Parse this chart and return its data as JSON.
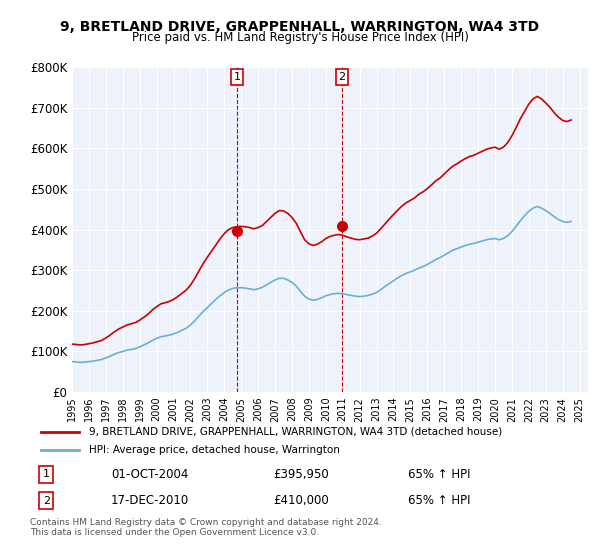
{
  "title": "9, BRETLAND DRIVE, GRAPPENHALL, WARRINGTON, WA4 3TD",
  "subtitle": "Price paid vs. HM Land Registry's House Price Index (HPI)",
  "ylabel": "",
  "background_color": "#ffffff",
  "plot_bg_color": "#eef3fb",
  "grid_color": "#ffffff",
  "ylim": [
    0,
    800000
  ],
  "yticks": [
    0,
    100000,
    200000,
    300000,
    400000,
    500000,
    600000,
    700000,
    800000
  ],
  "ytick_labels": [
    "£0",
    "£100K",
    "£200K",
    "£300K",
    "£400K",
    "£500K",
    "£600K",
    "£700K",
    "£800K"
  ],
  "xlim_start": 1995.0,
  "xlim_end": 2025.5,
  "hpi_color": "#6baed6",
  "property_color": "#cc0000",
  "marker1_date": 2004.75,
  "marker1_price": 395950,
  "marker1_label": "1",
  "marker1_date_str": "01-OCT-2004",
  "marker1_price_str": "£395,950",
  "marker1_hpi_str": "65% ↑ HPI",
  "marker2_date": 2010.96,
  "marker2_price": 410000,
  "marker2_label": "2",
  "marker2_date_str": "17-DEC-2010",
  "marker2_price_str": "£410,000",
  "marker2_hpi_str": "65% ↑ HPI",
  "legend_label_property": "9, BRETLAND DRIVE, GRAPPENHALL, WARRINGTON, WA4 3TD (detached house)",
  "legend_label_hpi": "HPI: Average price, detached house, Warrington",
  "footnote": "Contains HM Land Registry data © Crown copyright and database right 2024.\nThis data is licensed under the Open Government Licence v3.0.",
  "hpi_data_x": [
    1995.0,
    1995.25,
    1995.5,
    1995.75,
    1996.0,
    1996.25,
    1996.5,
    1996.75,
    1997.0,
    1997.25,
    1997.5,
    1997.75,
    1998.0,
    1998.25,
    1998.5,
    1998.75,
    1999.0,
    1999.25,
    1999.5,
    1999.75,
    2000.0,
    2000.25,
    2000.5,
    2000.75,
    2001.0,
    2001.25,
    2001.5,
    2001.75,
    2002.0,
    2002.25,
    2002.5,
    2002.75,
    2003.0,
    2003.25,
    2003.5,
    2003.75,
    2004.0,
    2004.25,
    2004.5,
    2004.75,
    2005.0,
    2005.25,
    2005.5,
    2005.75,
    2006.0,
    2006.25,
    2006.5,
    2006.75,
    2007.0,
    2007.25,
    2007.5,
    2007.75,
    2008.0,
    2008.25,
    2008.5,
    2008.75,
    2009.0,
    2009.25,
    2009.5,
    2009.75,
    2010.0,
    2010.25,
    2010.5,
    2010.75,
    2011.0,
    2011.25,
    2011.5,
    2011.75,
    2012.0,
    2012.25,
    2012.5,
    2012.75,
    2013.0,
    2013.25,
    2013.5,
    2013.75,
    2014.0,
    2014.25,
    2014.5,
    2014.75,
    2015.0,
    2015.25,
    2015.5,
    2015.75,
    2016.0,
    2016.25,
    2016.5,
    2016.75,
    2017.0,
    2017.25,
    2017.5,
    2017.75,
    2018.0,
    2018.25,
    2018.5,
    2018.75,
    2019.0,
    2019.25,
    2019.5,
    2019.75,
    2020.0,
    2020.25,
    2020.5,
    2020.75,
    2021.0,
    2021.25,
    2021.5,
    2021.75,
    2022.0,
    2022.25,
    2022.5,
    2022.75,
    2023.0,
    2023.25,
    2023.5,
    2023.75,
    2024.0,
    2024.25,
    2024.5
  ],
  "hpi_data_y": [
    75000,
    74000,
    73000,
    73500,
    75000,
    76000,
    78000,
    80000,
    84000,
    88000,
    93000,
    97000,
    100000,
    103000,
    105000,
    107000,
    111000,
    116000,
    121000,
    127000,
    132000,
    136000,
    138000,
    140000,
    143000,
    147000,
    152000,
    157000,
    165000,
    175000,
    187000,
    198000,
    208000,
    218000,
    228000,
    237000,
    245000,
    251000,
    255000,
    257000,
    257000,
    256000,
    254000,
    252000,
    254000,
    258000,
    264000,
    270000,
    276000,
    280000,
    280000,
    276000,
    270000,
    261000,
    248000,
    236000,
    229000,
    226000,
    228000,
    232000,
    237000,
    240000,
    242000,
    243000,
    242000,
    240000,
    238000,
    236000,
    235000,
    236000,
    238000,
    241000,
    245000,
    252000,
    260000,
    267000,
    274000,
    281000,
    287000,
    292000,
    296000,
    300000,
    305000,
    309000,
    314000,
    320000,
    326000,
    331000,
    337000,
    343000,
    349000,
    353000,
    357000,
    361000,
    364000,
    366000,
    369000,
    372000,
    375000,
    377000,
    378000,
    375000,
    378000,
    385000,
    395000,
    408000,
    422000,
    434000,
    445000,
    453000,
    457000,
    453000,
    447000,
    440000,
    432000,
    425000,
    420000,
    418000,
    420000
  ],
  "property_data_x": [
    1995.0,
    1995.25,
    1995.5,
    1995.75,
    1996.0,
    1996.25,
    1996.5,
    1996.75,
    1997.0,
    1997.25,
    1997.5,
    1997.75,
    1998.0,
    1998.25,
    1998.5,
    1998.75,
    1999.0,
    1999.25,
    1999.5,
    1999.75,
    2000.0,
    2000.25,
    2000.5,
    2000.75,
    2001.0,
    2001.25,
    2001.5,
    2001.75,
    2002.0,
    2002.25,
    2002.5,
    2002.75,
    2003.0,
    2003.25,
    2003.5,
    2003.75,
    2004.0,
    2004.25,
    2004.5,
    2004.75,
    2005.0,
    2005.25,
    2005.5,
    2005.75,
    2006.0,
    2006.25,
    2006.5,
    2006.75,
    2007.0,
    2007.25,
    2007.5,
    2007.75,
    2008.0,
    2008.25,
    2008.5,
    2008.75,
    2009.0,
    2009.25,
    2009.5,
    2009.75,
    2010.0,
    2010.25,
    2010.5,
    2010.75,
    2011.0,
    2011.25,
    2011.5,
    2011.75,
    2012.0,
    2012.25,
    2012.5,
    2012.75,
    2013.0,
    2013.25,
    2013.5,
    2013.75,
    2014.0,
    2014.25,
    2014.5,
    2014.75,
    2015.0,
    2015.25,
    2015.5,
    2015.75,
    2016.0,
    2016.25,
    2016.5,
    2016.75,
    2017.0,
    2017.25,
    2017.5,
    2017.75,
    2018.0,
    2018.25,
    2018.5,
    2018.75,
    2019.0,
    2019.25,
    2019.5,
    2019.75,
    2020.0,
    2020.25,
    2020.5,
    2020.75,
    2021.0,
    2021.25,
    2021.5,
    2021.75,
    2022.0,
    2022.25,
    2022.5,
    2022.75,
    2023.0,
    2023.25,
    2023.5,
    2023.75,
    2024.0,
    2024.25,
    2024.5
  ],
  "property_data_y": [
    118000,
    117000,
    116000,
    117000,
    119000,
    121000,
    124000,
    127000,
    133000,
    140000,
    148000,
    155000,
    160000,
    165000,
    168000,
    171000,
    177000,
    184000,
    192000,
    202000,
    210000,
    217000,
    220000,
    223000,
    228000,
    235000,
    243000,
    251000,
    263000,
    279000,
    298000,
    316000,
    332000,
    347000,
    362000,
    377000,
    390000,
    400000,
    405000,
    407000,
    408000,
    407000,
    405000,
    402000,
    405000,
    410000,
    420000,
    430000,
    440000,
    447000,
    446000,
    440000,
    430000,
    416000,
    395000,
    375000,
    365000,
    361000,
    364000,
    370000,
    378000,
    383000,
    386000,
    388000,
    386000,
    382000,
    379000,
    376000,
    375000,
    377000,
    379000,
    384000,
    391000,
    402000,
    414000,
    426000,
    437000,
    448000,
    458000,
    466000,
    472000,
    478000,
    487000,
    493000,
    501000,
    510000,
    520000,
    527000,
    537000,
    547000,
    556000,
    562000,
    569000,
    575000,
    580000,
    583000,
    588000,
    593000,
    598000,
    601000,
    603000,
    598000,
    603000,
    614000,
    631000,
    651000,
    673000,
    691000,
    709000,
    722000,
    728000,
    722000,
    712000,
    701000,
    688000,
    677000,
    669000,
    666000,
    670000
  ]
}
